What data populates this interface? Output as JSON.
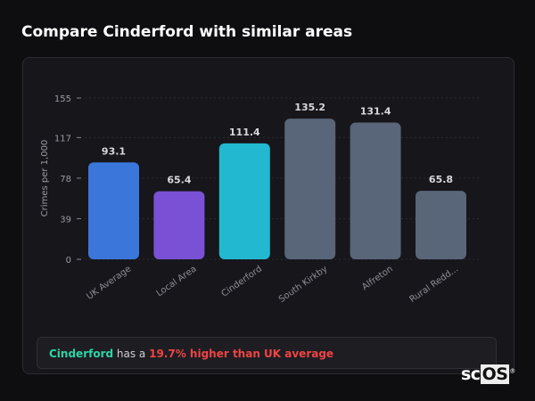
{
  "title": "Compare Cinderford with similar areas",
  "chart_data": {
    "type": "bar",
    "categories": [
      "UK Average",
      "Local Area",
      "Cinderford",
      "South Kirkby",
      "Alfreton",
      "Rural Redd..."
    ],
    "values": [
      93.1,
      65.4,
      111.4,
      135.2,
      131.4,
      65.8
    ],
    "value_labels": [
      "93.1",
      "65.4",
      "111.4",
      "135.2",
      "131.4",
      "65.8"
    ],
    "colors": [
      "#3b76db",
      "#7a51d4",
      "#22b9d0",
      "#596579",
      "#596579",
      "#596579"
    ],
    "ylabel": "Crimes per 1,000",
    "yticks": [
      "0",
      "39",
      "78",
      "117",
      "155"
    ],
    "ylim": [
      0,
      155
    ],
    "grid": true
  },
  "footer": {
    "area": "Cinderford",
    "middle": " has a ",
    "diff": "19.7% higher than UK average"
  },
  "logo": {
    "text_sc": "sc",
    "text_os": "OS",
    "mark": "®"
  }
}
